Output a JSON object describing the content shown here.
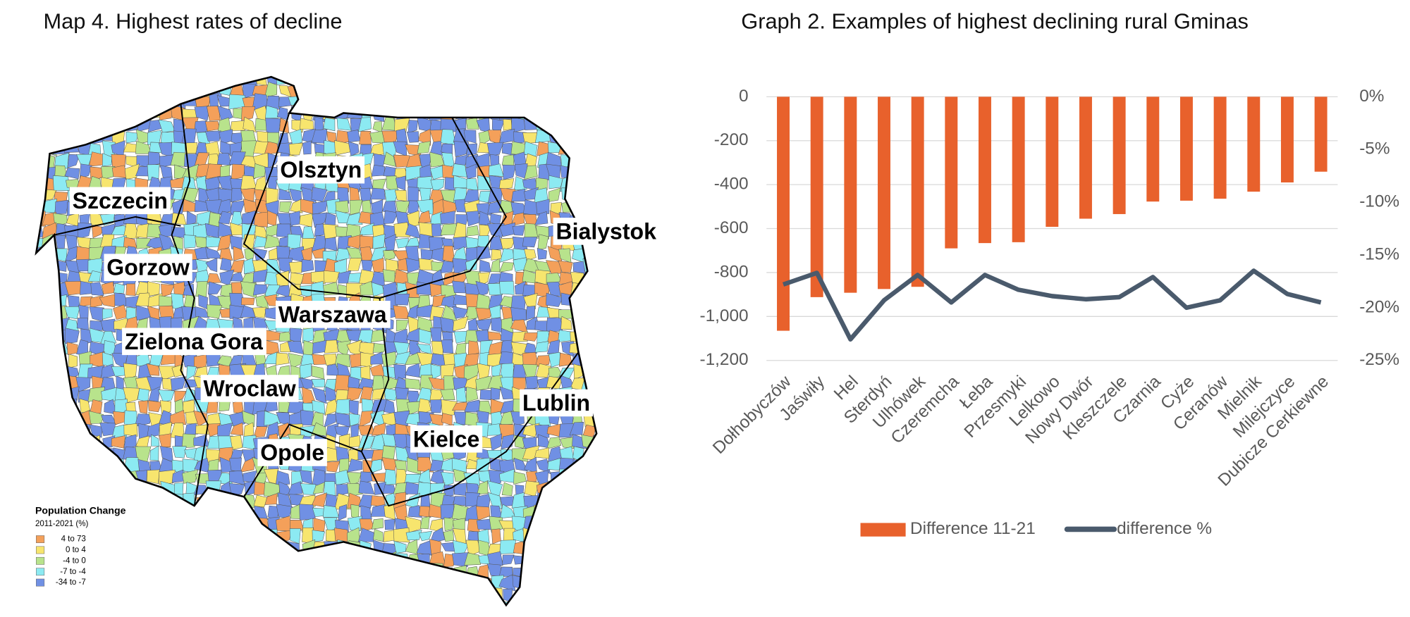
{
  "map": {
    "title": "Map 4. Highest rates of decline",
    "cities": [
      "Szczecin",
      "Olsztyn",
      "Bialystok",
      "Gorzow",
      "Warszawa",
      "Zielona Gora",
      "Wroclaw",
      "Lublin",
      "Kielce",
      "Opole"
    ],
    "legend": {
      "title": "Population Change",
      "subtitle": "2011-2021 (%)",
      "items": [
        {
          "label": "4 to 73",
          "color": "#f4a05a"
        },
        {
          "label": "0 to  4",
          "color": "#f7e56e"
        },
        {
          "label": "-4 to  0",
          "color": "#b8e38c"
        },
        {
          "label": "-7 to -4",
          "color": "#8ceaf2"
        },
        {
          "label": "-34 to  -7",
          "color": "#7090e4"
        }
      ]
    }
  },
  "chart_data": {
    "type": "bar-line",
    "title": "Graph 2. Examples of highest declining rural Gminas",
    "categories": [
      "Dołhobyczów",
      "Jaświły",
      "Hel",
      "Sterdyń",
      "Ulhówek",
      "Czeremcha",
      "Łeba",
      "Przesmyki",
      "Lelkowo",
      "Nowy Dwór",
      "Kleszczele",
      "Czarnia",
      "Cyże",
      "Ceranów",
      "Mielnik",
      "Milejczyce",
      "Dubicze Cerkiewne"
    ],
    "series": [
      {
        "name": "Difference 11-21",
        "color": "#e8612c",
        "type": "bar",
        "values": [
          -1065,
          -912,
          -892,
          -875,
          -865,
          -690,
          -666,
          -662,
          -592,
          -555,
          -534,
          -477,
          -473,
          -464,
          -432,
          -390,
          -341
        ]
      },
      {
        "name": "difference %",
        "color": "#4a5a6c",
        "type": "line",
        "axis": "y2",
        "values": [
          -17.8,
          -16.7,
          -23.0,
          -19.3,
          -16.9,
          -19.5,
          -16.9,
          -18.3,
          -18.9,
          -19.2,
          -19.0,
          -17.1,
          -20.0,
          -19.3,
          -16.5,
          -18.7,
          -19.5
        ]
      }
    ],
    "ylim": [
      -1200,
      0
    ],
    "yticks": [
      0,
      -200,
      -400,
      -600,
      -800,
      {
        "value": -1000,
        "label": "-1,000"
      },
      {
        "value": -1200,
        "label": "-1,200"
      }
    ],
    "y2lim": [
      -25,
      0
    ],
    "y2ticks": [
      {
        "value": 0,
        "label": "0%"
      },
      {
        "value": -5,
        "label": "-5%"
      },
      {
        "value": -10,
        "label": "-10%"
      },
      {
        "value": -15,
        "label": "-15%"
      },
      {
        "value": -20,
        "label": "-20%"
      },
      {
        "value": -25,
        "label": "-25%"
      }
    ],
    "grid": true,
    "legend": "bottom"
  }
}
